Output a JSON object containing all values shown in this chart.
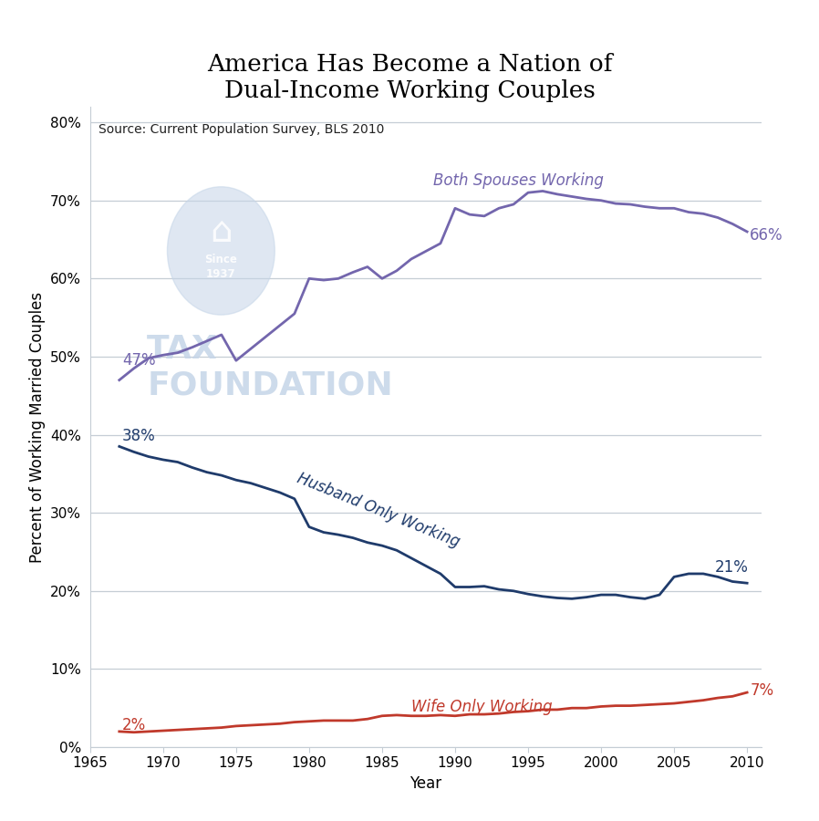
{
  "title": "America Has Become a Nation of\nDual-Income Working Couples",
  "source_text": "Source: Current Population Survey, BLS 2010",
  "xlabel": "Year",
  "ylabel": "Percent of Working Married Couples",
  "xlim": [
    1965,
    2011
  ],
  "ylim": [
    0,
    0.82
  ],
  "yticks": [
    0,
    0.1,
    0.2,
    0.3,
    0.4,
    0.5,
    0.6,
    0.7,
    0.8
  ],
  "ytick_labels": [
    "0%",
    "10%",
    "20%",
    "30%",
    "40%",
    "50%",
    "60%",
    "70%",
    "80%"
  ],
  "xticks": [
    1965,
    1970,
    1975,
    1980,
    1985,
    1990,
    1995,
    2000,
    2005,
    2010
  ],
  "both_spouses_color": "#7366AD",
  "husband_only_color": "#1F3B6B",
  "wife_only_color": "#C0392B",
  "background_color": "#FFFFFF",
  "watermark_color": "#C5D5E8",
  "grid_color": "#C5CDD5",
  "both_spouses_x": [
    1967,
    1968,
    1969,
    1970,
    1971,
    1972,
    1973,
    1974,
    1975,
    1976,
    1977,
    1978,
    1979,
    1980,
    1981,
    1982,
    1983,
    1984,
    1985,
    1986,
    1987,
    1988,
    1989,
    1990,
    1991,
    1992,
    1993,
    1994,
    1995,
    1996,
    1997,
    1998,
    1999,
    2000,
    2001,
    2002,
    2003,
    2004,
    2005,
    2006,
    2007,
    2008,
    2009,
    2010
  ],
  "both_spouses_y": [
    0.47,
    0.485,
    0.498,
    0.502,
    0.505,
    0.512,
    0.52,
    0.528,
    0.495,
    0.51,
    0.525,
    0.54,
    0.555,
    0.6,
    0.598,
    0.6,
    0.608,
    0.615,
    0.6,
    0.61,
    0.625,
    0.635,
    0.645,
    0.69,
    0.682,
    0.68,
    0.69,
    0.695,
    0.71,
    0.712,
    0.708,
    0.705,
    0.702,
    0.7,
    0.696,
    0.695,
    0.692,
    0.69,
    0.69,
    0.685,
    0.683,
    0.678,
    0.67,
    0.66
  ],
  "husband_only_x": [
    1967,
    1968,
    1969,
    1970,
    1971,
    1972,
    1973,
    1974,
    1975,
    1976,
    1977,
    1978,
    1979,
    1980,
    1981,
    1982,
    1983,
    1984,
    1985,
    1986,
    1987,
    1988,
    1989,
    1990,
    1991,
    1992,
    1993,
    1994,
    1995,
    1996,
    1997,
    1998,
    1999,
    2000,
    2001,
    2002,
    2003,
    2004,
    2005,
    2006,
    2007,
    2008,
    2009,
    2010
  ],
  "husband_only_y": [
    0.385,
    0.378,
    0.372,
    0.368,
    0.365,
    0.358,
    0.352,
    0.348,
    0.342,
    0.338,
    0.332,
    0.326,
    0.318,
    0.282,
    0.275,
    0.272,
    0.268,
    0.262,
    0.258,
    0.252,
    0.242,
    0.232,
    0.222,
    0.205,
    0.205,
    0.206,
    0.202,
    0.2,
    0.196,
    0.193,
    0.191,
    0.19,
    0.192,
    0.195,
    0.195,
    0.192,
    0.19,
    0.195,
    0.218,
    0.222,
    0.222,
    0.218,
    0.212,
    0.21
  ],
  "wife_only_x": [
    1967,
    1968,
    1969,
    1970,
    1971,
    1972,
    1973,
    1974,
    1975,
    1976,
    1977,
    1978,
    1979,
    1980,
    1981,
    1982,
    1983,
    1984,
    1985,
    1986,
    1987,
    1988,
    1989,
    1990,
    1991,
    1992,
    1993,
    1994,
    1995,
    1996,
    1997,
    1998,
    1999,
    2000,
    2001,
    2002,
    2003,
    2004,
    2005,
    2006,
    2007,
    2008,
    2009,
    2010
  ],
  "wife_only_y": [
    0.02,
    0.019,
    0.02,
    0.021,
    0.022,
    0.023,
    0.024,
    0.025,
    0.027,
    0.028,
    0.029,
    0.03,
    0.032,
    0.033,
    0.034,
    0.034,
    0.034,
    0.036,
    0.04,
    0.041,
    0.04,
    0.04,
    0.041,
    0.04,
    0.042,
    0.042,
    0.043,
    0.045,
    0.046,
    0.048,
    0.048,
    0.05,
    0.05,
    0.052,
    0.053,
    0.053,
    0.054,
    0.055,
    0.056,
    0.058,
    0.06,
    0.063,
    0.065,
    0.07
  ],
  "title_fontsize": 19,
  "label_fontsize": 12,
  "tick_fontsize": 11,
  "annotation_fontsize": 12,
  "source_fontsize": 10
}
